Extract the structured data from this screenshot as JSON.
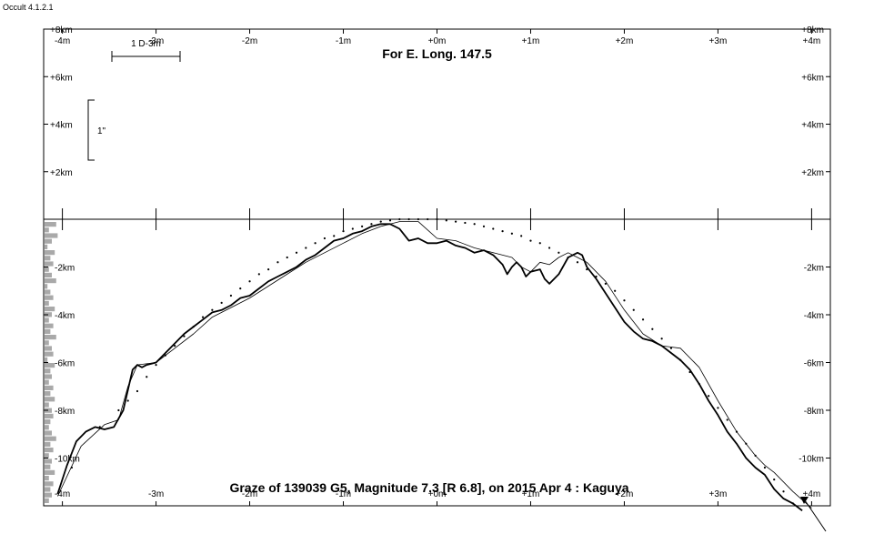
{
  "app": {
    "label": "Occult 4.1.2.1"
  },
  "chart_data": {
    "type": "line",
    "title": "Graze of 139039 G5,  Magnitude 7.3 [R 6.8],  on 2015 Apr  4  :  Kaguya",
    "subtitle": "For E. Long. 147.5",
    "scale_bar": {
      "label": "1 D-3m"
    },
    "height_bar": {
      "label": "1\""
    },
    "x_top_tick_labels": [
      "-4m",
      "-3m",
      "-2m",
      "-1m",
      "+0m",
      "+1m",
      "+2m",
      "+3m",
      "+4m"
    ],
    "x_bottom_tick_labels": [
      "-4m",
      "-3m",
      "-2m",
      "-1m",
      "+0m",
      "+1m",
      "+2m",
      "+3m",
      "+4m"
    ],
    "x_ticks": [
      -4,
      -3,
      -2,
      -1,
      0,
      1,
      2,
      3,
      4
    ],
    "xlim": [
      -4.2,
      4.2
    ],
    "upper_y_ticks": [
      8,
      6,
      4,
      2
    ],
    "upper_y_tick_labels": [
      "+8km",
      "+6km",
      "+4km",
      "+2km"
    ],
    "lower_y_ticks": [
      -2,
      -4,
      -6,
      -8,
      -10
    ],
    "lower_y_tick_labels": [
      "-2km",
      "-4km",
      "-6km",
      "-8km",
      "-10km"
    ],
    "upper_ylim": [
      0,
      8
    ],
    "lower_ylim": [
      -12,
      0
    ],
    "series": [
      {
        "style": "heavy",
        "x": [
          -4.05,
          -3.95,
          -3.85,
          -3.75,
          -3.65,
          -3.55,
          -3.45,
          -3.35,
          -3.25,
          -3.2,
          -3.15,
          -3.1,
          -3.0,
          -2.9,
          -2.8,
          -2.7,
          -2.6,
          -2.5,
          -2.4,
          -2.3,
          -2.2,
          -2.1,
          -2.0,
          -1.9,
          -1.8,
          -1.7,
          -1.6,
          -1.5,
          -1.4,
          -1.3,
          -1.2,
          -1.1,
          -1.0,
          -0.9,
          -0.8,
          -0.7,
          -0.6,
          -0.5,
          -0.4,
          -0.3,
          -0.2,
          -0.1,
          0.0,
          0.1,
          0.2,
          0.3,
          0.4,
          0.5,
          0.6,
          0.7,
          0.75,
          0.8,
          0.85,
          0.9,
          0.95,
          1.0,
          1.1,
          1.15,
          1.2,
          1.3,
          1.4,
          1.45,
          1.5,
          1.55,
          1.6,
          1.7,
          1.8,
          1.9,
          2.0,
          2.1,
          2.2,
          2.3,
          2.4,
          2.5,
          2.6,
          2.7,
          2.8,
          2.9,
          3.0,
          3.1,
          3.2,
          3.3,
          3.4,
          3.5,
          3.6,
          3.7,
          3.8,
          3.9
        ],
        "y": [
          -11.5,
          -10.3,
          -9.3,
          -8.9,
          -8.7,
          -8.8,
          -8.7,
          -8.0,
          -6.3,
          -6.1,
          -6.2,
          -6.1,
          -6.0,
          -5.6,
          -5.2,
          -4.8,
          -4.5,
          -4.2,
          -3.9,
          -3.8,
          -3.6,
          -3.3,
          -3.2,
          -2.9,
          -2.6,
          -2.4,
          -2.2,
          -2.0,
          -1.7,
          -1.5,
          -1.2,
          -0.9,
          -0.8,
          -0.6,
          -0.5,
          -0.3,
          -0.2,
          -0.2,
          -0.4,
          -0.9,
          -0.8,
          -1.0,
          -1.0,
          -0.9,
          -1.1,
          -1.2,
          -1.4,
          -1.3,
          -1.5,
          -1.9,
          -2.3,
          -2.0,
          -1.8,
          -2.0,
          -2.4,
          -2.2,
          -2.1,
          -2.5,
          -2.7,
          -2.3,
          -1.6,
          -1.5,
          -1.4,
          -1.5,
          -2.0,
          -2.5,
          -3.1,
          -3.7,
          -4.3,
          -4.7,
          -5.0,
          -5.1,
          -5.3,
          -5.6,
          -5.9,
          -6.3,
          -6.9,
          -7.6,
          -8.2,
          -8.9,
          -9.4,
          -10.0,
          -10.4,
          -10.7,
          -11.3,
          -11.7,
          -11.9,
          -12.2
        ]
      },
      {
        "style": "thin",
        "x": [
          -4.05,
          -3.8,
          -3.55,
          -3.4,
          -3.3,
          -3.2,
          -3.0,
          -2.8,
          -2.6,
          -2.4,
          -2.2,
          -2.0,
          -1.8,
          -1.6,
          -1.4,
          -1.2,
          -1.0,
          -0.8,
          -0.6,
          -0.4,
          -0.2,
          0.0,
          0.2,
          0.4,
          0.6,
          0.8,
          0.9,
          1.0,
          1.1,
          1.2,
          1.3,
          1.4,
          1.5,
          1.6,
          1.8,
          2.0,
          2.2,
          2.4,
          2.6,
          2.8,
          3.0,
          3.2,
          3.4,
          3.5,
          3.6,
          3.8,
          4.0
        ],
        "y": [
          -11.6,
          -9.5,
          -8.6,
          -8.4,
          -7.0,
          -6.1,
          -6.0,
          -5.4,
          -4.8,
          -4.1,
          -3.7,
          -3.3,
          -2.8,
          -2.3,
          -1.8,
          -1.4,
          -1.0,
          -0.6,
          -0.3,
          -0.1,
          -0.1,
          -0.8,
          -0.9,
          -1.2,
          -1.4,
          -1.6,
          -2.0,
          -2.2,
          -1.8,
          -1.9,
          -1.6,
          -1.4,
          -1.6,
          -1.8,
          -2.6,
          -3.8,
          -4.8,
          -5.3,
          -5.4,
          -6.2,
          -7.6,
          -8.9,
          -9.9,
          -10.3,
          -10.6,
          -11.4,
          -12.1
        ]
      },
      {
        "style": "dots",
        "x": [
          -3.9,
          -3.6,
          -3.4,
          -3.3,
          -3.2,
          -3.1,
          -3.0,
          -2.9,
          -2.8,
          -2.7,
          -2.6,
          -2.5,
          -2.4,
          -2.3,
          -2.2,
          -2.1,
          -2.0,
          -1.9,
          -1.8,
          -1.7,
          -1.6,
          -1.5,
          -1.4,
          -1.3,
          -1.2,
          -1.1,
          -1.0,
          -0.9,
          -0.8,
          -0.7,
          -0.6,
          -0.5,
          -0.4,
          -0.3,
          -0.2,
          -0.1,
          0.0,
          0.1,
          0.2,
          0.3,
          0.4,
          0.5,
          0.6,
          0.7,
          0.8,
          0.9,
          1.0,
          1.1,
          1.2,
          1.3,
          1.4,
          1.5,
          1.6,
          1.7,
          1.8,
          1.9,
          2.0,
          2.1,
          2.2,
          2.3,
          2.4,
          2.5,
          2.6,
          2.7,
          2.8,
          2.9,
          3.0,
          3.1,
          3.2,
          3.3,
          3.4,
          3.5,
          3.6,
          3.7,
          3.8
        ],
        "y": [
          -10.4,
          -8.7,
          -8.0,
          -7.6,
          -7.2,
          -6.6,
          -6.1,
          -5.7,
          -5.3,
          -4.9,
          -4.5,
          -4.1,
          -3.8,
          -3.5,
          -3.2,
          -2.9,
          -2.6,
          -2.3,
          -2.1,
          -1.8,
          -1.6,
          -1.4,
          -1.2,
          -1.0,
          -0.8,
          -0.7,
          -0.5,
          -0.4,
          -0.3,
          -0.2,
          -0.1,
          -0.05,
          0.0,
          0.0,
          0.0,
          0.0,
          0.0,
          -0.05,
          -0.1,
          -0.15,
          -0.2,
          -0.3,
          -0.4,
          -0.5,
          -0.6,
          -0.7,
          -0.9,
          -1.0,
          -1.2,
          -1.4,
          -1.6,
          -1.8,
          -2.1,
          -2.4,
          -2.7,
          -3.0,
          -3.4,
          -3.8,
          -4.2,
          -4.6,
          -5.0,
          -5.4,
          -5.9,
          -6.4,
          -6.9,
          -7.4,
          -7.9,
          -8.4,
          -8.9,
          -9.4,
          -9.9,
          -10.4,
          -10.9,
          -11.4,
          -11.9
        ]
      }
    ],
    "limb_histogram": [
      0.8,
      0.3,
      0.9,
      0.5,
      0.2,
      0.7,
      0.4,
      0.6,
      0.3,
      0.5,
      0.8,
      0.2,
      0.4,
      0.6,
      0.3,
      0.7,
      0.5,
      0.3,
      0.6,
      0.4,
      0.8,
      0.3,
      0.5,
      0.6,
      0.2,
      0.7,
      0.4,
      0.5,
      0.3,
      0.6,
      0.4,
      0.7,
      0.3,
      0.5,
      0.6,
      0.4,
      0.3,
      0.5,
      0.8,
      0.4,
      0.6,
      0.3,
      0.5,
      0.4,
      0.7,
      0.3,
      0.6,
      0.4,
      0.5,
      0.3
    ],
    "grid": false,
    "legend": "none"
  }
}
